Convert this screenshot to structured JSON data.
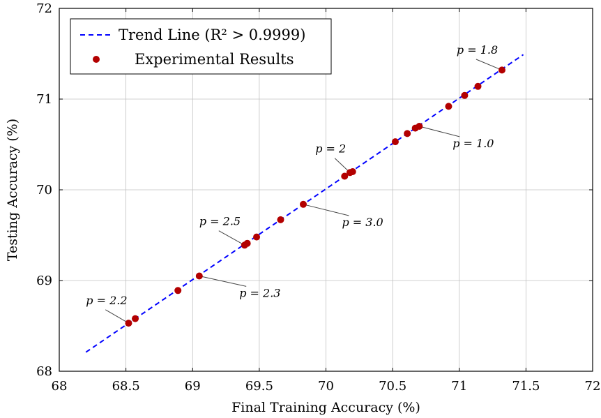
{
  "chart_data": {
    "type": "scatter",
    "xlabel": "Final Training Accuracy (%)",
    "ylabel": "Testing Accuracy (%)",
    "xlim": [
      68,
      72
    ],
    "ylim": [
      68,
      72
    ],
    "xticks": [
      "68",
      "68.5",
      "69",
      "69.5",
      "70",
      "70.5",
      "71",
      "71.5",
      "72"
    ],
    "yticks": [
      "68",
      "69",
      "70",
      "71",
      "72"
    ],
    "grid": true,
    "legend_position": "top-left",
    "series": [
      {
        "name": "Trend Line (R² > 0.9999)",
        "kind": "line",
        "style": "dashed",
        "color": "#0000ff",
        "x": [
          68.2,
          71.48
        ],
        "y": [
          68.21,
          71.49
        ]
      },
      {
        "name": "Experimental Results",
        "kind": "scatter",
        "color": "#b30000",
        "x": [
          68.52,
          68.57,
          68.89,
          69.05,
          69.39,
          69.41,
          69.48,
          69.66,
          69.83,
          70.14,
          70.18,
          70.2,
          70.52,
          70.61,
          70.67,
          70.7,
          70.92,
          71.04,
          71.14,
          71.32
        ],
        "y": [
          68.53,
          68.58,
          68.89,
          69.05,
          69.39,
          69.41,
          69.48,
          69.67,
          69.84,
          70.15,
          70.19,
          70.2,
          70.53,
          70.62,
          70.68,
          70.7,
          70.92,
          71.04,
          71.14,
          71.32
        ]
      }
    ],
    "annotations": [
      {
        "text": "p = 1.8",
        "x": 71.32,
        "y": 71.32,
        "tx": 70.98,
        "ty": 71.5
      },
      {
        "text": "p = 1.0",
        "x": 70.7,
        "y": 70.7,
        "tx": 70.95,
        "ty": 70.47
      },
      {
        "text": "p = 2",
        "x": 70.18,
        "y": 70.19,
        "tx": 69.92,
        "ty": 70.41
      },
      {
        "text": "p = 3.0",
        "x": 69.83,
        "y": 69.84,
        "tx": 70.12,
        "ty": 69.6
      },
      {
        "text": "p = 2.5",
        "x": 69.39,
        "y": 69.39,
        "tx": 69.05,
        "ty": 69.61
      },
      {
        "text": "p = 2.3",
        "x": 69.05,
        "y": 69.05,
        "tx": 69.35,
        "ty": 68.82
      },
      {
        "text": "p = 2.2",
        "x": 68.52,
        "y": 68.53,
        "tx": 68.2,
        "ty": 68.74
      }
    ]
  }
}
